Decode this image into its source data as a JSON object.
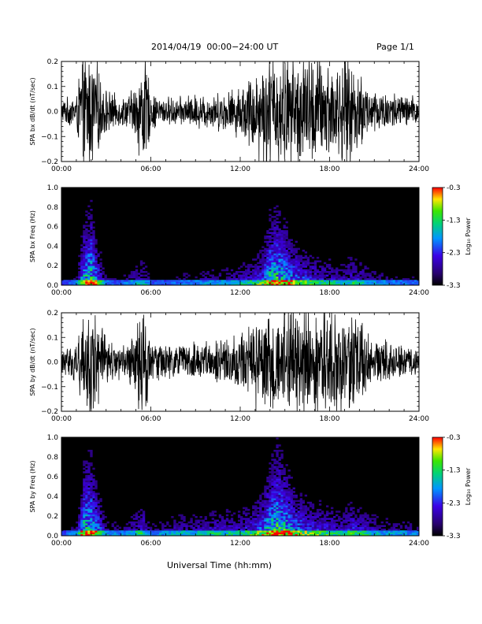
{
  "header": {
    "title": "2014/04/19  00:00−24:00 UT",
    "page": "Page 1/1"
  },
  "xaxis_label": "Universal Time (hh:mm)",
  "colors": {
    "trace": "#000000",
    "spectrogram_background": "#000000"
  },
  "chart_data": [
    {
      "type": "line",
      "ylabel": "SPA bx dB/dt (nT/sec)",
      "ylim": [
        -0.2,
        0.2
      ],
      "yticks": [
        -0.2,
        -0.1,
        0.0,
        0.1,
        0.2
      ],
      "ytick_labels": [
        "−0.2",
        "−0.1",
        "0.0",
        "0.1",
        "0.2"
      ],
      "xlim": [
        "00:00",
        "24:00"
      ],
      "xtick_labels": [
        "00:00",
        "06:00",
        "12:00",
        "18:00",
        "24:00"
      ],
      "envelope_hours": [
        0,
        1,
        1.4,
        1.7,
        2.2,
        2.6,
        3,
        3.5,
        4,
        4.5,
        5,
        5.4,
        5.6,
        6,
        6.5,
        7,
        8,
        9,
        10,
        11,
        12,
        12.5,
        13,
        13.5,
        14,
        14.5,
        15,
        15.5,
        16,
        16.5,
        17,
        17.5,
        18,
        18.5,
        19,
        19.5,
        20,
        20.5,
        21,
        22,
        23,
        24
      ],
      "envelope_amplitude": [
        0.04,
        0.06,
        0.2,
        0.2,
        0.2,
        0.12,
        0.08,
        0.06,
        0.05,
        0.06,
        0.1,
        0.2,
        0.2,
        0.07,
        0.05,
        0.05,
        0.05,
        0.06,
        0.06,
        0.07,
        0.09,
        0.12,
        0.15,
        0.18,
        0.2,
        0.2,
        0.2,
        0.2,
        0.2,
        0.2,
        0.2,
        0.2,
        0.18,
        0.16,
        0.2,
        0.18,
        0.14,
        0.1,
        0.08,
        0.07,
        0.06,
        0.05
      ]
    },
    {
      "type": "heatmap",
      "ylabel": "SPA bx Freq (Hz)",
      "ylim": [
        0,
        1.0
      ],
      "yticks": [
        0.0,
        0.2,
        0.4,
        0.6,
        0.8,
        1.0
      ],
      "ytick_labels": [
        "0.0",
        "0.2",
        "0.4",
        "0.6",
        "0.8",
        "1.0"
      ],
      "xlim": [
        "00:00",
        "24:00"
      ],
      "xtick_labels": [
        "00:00",
        "06:00",
        "12:00",
        "18:00",
        "24:00"
      ],
      "colorbar": {
        "label": "Log₁₀ Power",
        "range": [
          -3.3,
          -0.3
        ],
        "tick_labels": [
          "-0.3",
          "-1.3",
          "-2.3",
          "-3.3"
        ]
      },
      "activity_hours": [
        0,
        1,
        1.5,
        2,
        2.5,
        3,
        4,
        5,
        5.5,
        6,
        7,
        8,
        9,
        10,
        11,
        12,
        13,
        13.5,
        14,
        14.5,
        15,
        15.5,
        16,
        17,
        18,
        19,
        19.5,
        20,
        21,
        22,
        23,
        24
      ],
      "activity_level": [
        0.1,
        0.2,
        0.7,
        0.8,
        0.5,
        0.2,
        0.15,
        0.3,
        0.35,
        0.15,
        0.15,
        0.2,
        0.2,
        0.25,
        0.25,
        0.3,
        0.4,
        0.5,
        0.75,
        0.8,
        0.7,
        0.6,
        0.5,
        0.4,
        0.35,
        0.3,
        0.4,
        0.35,
        0.25,
        0.2,
        0.2,
        0.15
      ]
    },
    {
      "type": "line",
      "ylabel": "SPA by dB/dt (nT/sec)",
      "ylim": [
        -0.2,
        0.2
      ],
      "yticks": [
        -0.2,
        -0.1,
        0.0,
        0.1,
        0.2
      ],
      "ytick_labels": [
        "−0.2",
        "−0.1",
        "0.0",
        "0.1",
        "0.2"
      ],
      "xlim": [
        "00:00",
        "24:00"
      ],
      "xtick_labels": [
        "00:00",
        "06:00",
        "12:00",
        "18:00",
        "24:00"
      ],
      "envelope_hours": [
        0,
        1,
        1.4,
        1.7,
        2.2,
        2.6,
        3,
        3.5,
        4,
        4.5,
        5,
        5.4,
        5.6,
        6,
        6.5,
        7,
        8,
        9,
        10,
        11,
        12,
        12.5,
        13,
        13.5,
        14,
        14.5,
        15,
        15.5,
        16,
        16.5,
        17,
        17.5,
        18,
        18.5,
        19,
        19.5,
        20,
        20.5,
        21,
        22,
        23,
        24
      ],
      "envelope_amplitude": [
        0.04,
        0.07,
        0.2,
        0.2,
        0.2,
        0.13,
        0.09,
        0.07,
        0.06,
        0.07,
        0.12,
        0.2,
        0.2,
        0.07,
        0.06,
        0.06,
        0.06,
        0.07,
        0.07,
        0.08,
        0.1,
        0.13,
        0.16,
        0.2,
        0.2,
        0.2,
        0.2,
        0.2,
        0.2,
        0.2,
        0.2,
        0.2,
        0.19,
        0.17,
        0.2,
        0.18,
        0.15,
        0.11,
        0.08,
        0.07,
        0.06,
        0.05
      ]
    },
    {
      "type": "heatmap",
      "ylabel": "SPA by Freq (Hz)",
      "ylim": [
        0,
        1.0
      ],
      "yticks": [
        0.0,
        0.2,
        0.4,
        0.6,
        0.8,
        1.0
      ],
      "ytick_labels": [
        "0.0",
        "0.2",
        "0.4",
        "0.6",
        "0.8",
        "1.0"
      ],
      "xlim": [
        "00:00",
        "24:00"
      ],
      "xtick_labels": [
        "00:00",
        "06:00",
        "12:00",
        "18:00",
        "24:00"
      ],
      "colorbar": {
        "label": "Log₁₀ Power",
        "range": [
          -3.3,
          -0.3
        ],
        "tick_labels": [
          "-0.3",
          "-1.3",
          "-2.3",
          "-3.3"
        ]
      },
      "activity_hours": [
        0,
        1,
        1.5,
        2,
        2.5,
        3,
        4,
        5,
        5.5,
        6,
        7,
        8,
        9,
        10,
        11,
        12,
        13,
        13.5,
        14,
        14.5,
        15,
        15.5,
        16,
        17,
        18,
        19,
        19.5,
        20,
        21,
        22,
        23,
        24
      ],
      "activity_level": [
        0.1,
        0.25,
        0.75,
        0.8,
        0.55,
        0.25,
        0.2,
        0.35,
        0.4,
        0.2,
        0.25,
        0.3,
        0.3,
        0.35,
        0.35,
        0.35,
        0.45,
        0.55,
        0.75,
        0.85,
        0.75,
        0.65,
        0.55,
        0.45,
        0.4,
        0.35,
        0.45,
        0.4,
        0.3,
        0.25,
        0.25,
        0.2
      ]
    }
  ]
}
